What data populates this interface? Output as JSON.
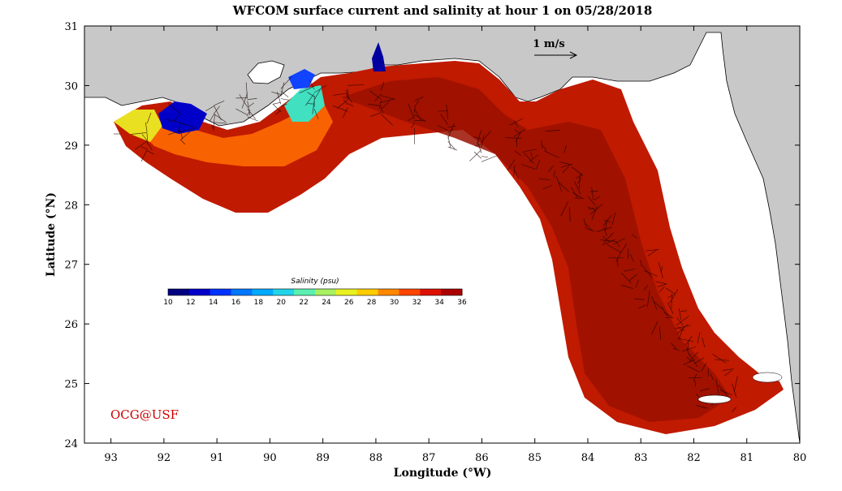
{
  "title": "WFCOM surface current and salinity at hour 1 on 05/28/2018",
  "axes": {
    "xlabel": "Longitude (°W)",
    "ylabel": "Latitude (°N)",
    "xticks": [
      "93",
      "92",
      "91",
      "90",
      "89",
      "88",
      "87",
      "86",
      "85",
      "84",
      "83",
      "82",
      "81",
      "80"
    ],
    "yticks": [
      "31",
      "30",
      "29",
      "28",
      "27",
      "26",
      "25",
      "24"
    ],
    "xlim": [
      93.5,
      80
    ],
    "ylim": [
      24,
      31
    ]
  },
  "colorbar": {
    "title": "Salinity (psu)",
    "labels": [
      "10",
      "12",
      "14",
      "16",
      "18",
      "20",
      "22",
      "24",
      "26",
      "28",
      "30",
      "32",
      "34",
      "36"
    ],
    "colors": [
      "#000080",
      "#0000c8",
      "#0033ff",
      "#0077ff",
      "#00aaff",
      "#22d4e8",
      "#5cf0b0",
      "#a8f060",
      "#e8f020",
      "#ffcc00",
      "#ff8800",
      "#ff4400",
      "#dd1100",
      "#aa0000"
    ]
  },
  "scale_arrow": {
    "label": "1 m/s"
  },
  "credit": "OCG@USF",
  "colors": {
    "land": "#c8c8c8",
    "ocean_dominant": "#aa1500",
    "low_salinity": "#0000c8",
    "text_credit": "#cc0000"
  }
}
